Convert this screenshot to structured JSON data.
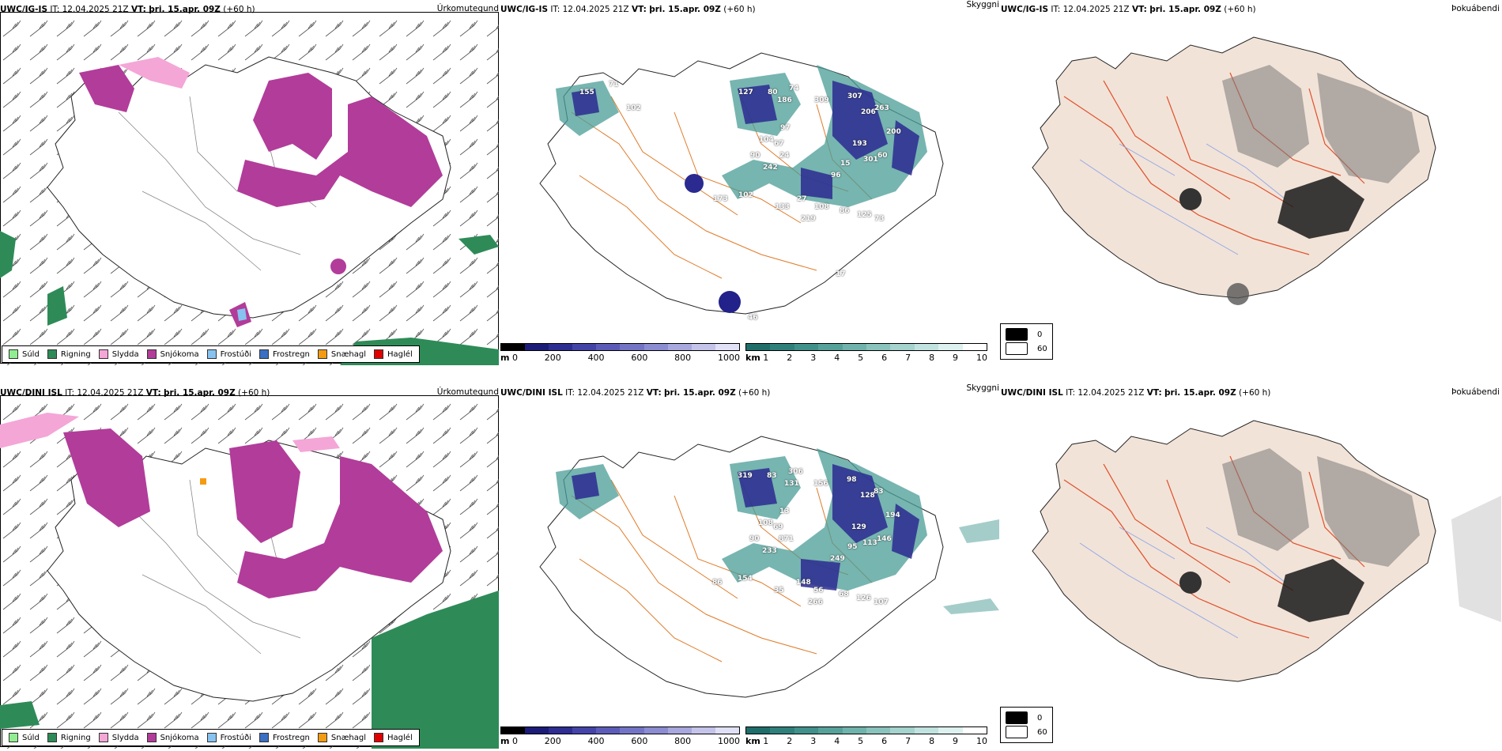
{
  "rows": [
    {
      "model": "UWC/IG-IS",
      "it_label": "IT:",
      "it_value": "12.04.2025 21Z",
      "vt_label": "VT:",
      "vt_value": "þri. 15.apr. 09Z",
      "lead": "(+60 h)",
      "titles": [
        "Úrkomutegund",
        "Skyggni",
        "Þokuábendi"
      ]
    },
    {
      "model": "UWC/DINI ISL",
      "it_label": "IT:",
      "it_value": "12.04.2025 21Z",
      "vt_label": "VT:",
      "vt_value": "þri. 15.apr. 09Z",
      "lead": "(+60 h)",
      "titles": [
        "Úrkomutegund",
        "Skyggni",
        "Þokuábendi"
      ]
    }
  ],
  "precip_legend": [
    {
      "label": "Súld",
      "color": "#90ee90"
    },
    {
      "label": "Rigning",
      "color": "#2e8b57"
    },
    {
      "label": "Slydda",
      "color": "#f4a6d7"
    },
    {
      "label": "Snjókoma",
      "color": "#b23c9a"
    },
    {
      "label": "Frostúði",
      "color": "#87c3f0"
    },
    {
      "label": "Frostregn",
      "color": "#3b6fc4"
    },
    {
      "label": "Snæhagl",
      "color": "#f39c12"
    },
    {
      "label": "Haglél",
      "color": "#e00000"
    }
  ],
  "elev_bar": {
    "unit": "m",
    "ticks": [
      "0",
      "200",
      "400",
      "600",
      "800",
      "1000"
    ]
  },
  "vis_bar": {
    "unit": "km",
    "ticks": [
      "1",
      "2",
      "3",
      "4",
      "5",
      "6",
      "7",
      "8",
      "9",
      "10"
    ]
  },
  "fog_legend": [
    "0",
    "60"
  ],
  "vis_labels_top": [
    "155",
    "71",
    "102",
    "127",
    "80",
    "74",
    "309",
    "307",
    "206",
    "263",
    "186",
    "104",
    "97",
    "67",
    "200",
    "193",
    "242",
    "301",
    "90",
    "24",
    "15",
    "60",
    "173",
    "102",
    "96",
    "27",
    "108",
    "86",
    "125",
    "73",
    "219",
    "133",
    "17",
    "46"
  ],
  "vis_labels_bottom": [
    "319",
    "83",
    "306",
    "156",
    "98",
    "128",
    "83",
    "131",
    "108",
    "13",
    "69",
    "194",
    "129",
    "233",
    "113",
    "90",
    "871",
    "95",
    "146",
    "86",
    "154",
    "249",
    "148",
    "56",
    "68",
    "126",
    "107",
    "266",
    "35"
  ]
}
